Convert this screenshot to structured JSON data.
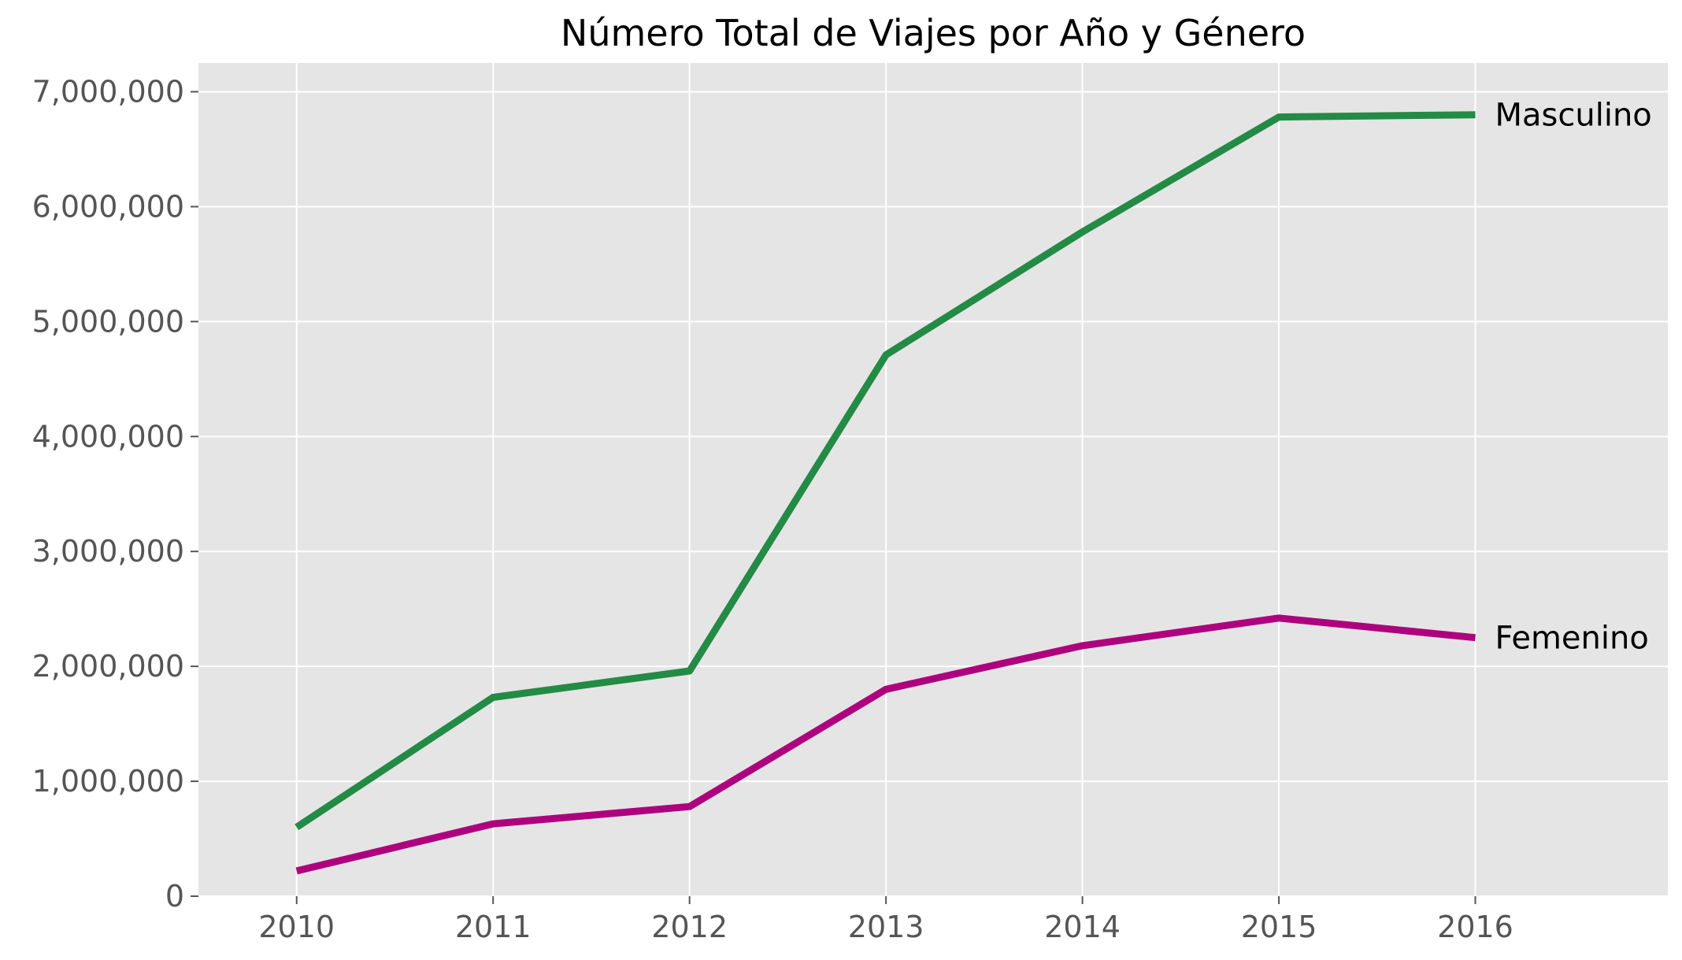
{
  "chart_data": {
    "type": "line",
    "title": "Número Total de Viajes por Año y Género",
    "xlabel": "",
    "ylabel": "",
    "x": [
      2010,
      2011,
      2012,
      2013,
      2014,
      2015,
      2016
    ],
    "x_tick_labels": [
      "2010",
      "2011",
      "2012",
      "2013",
      "2014",
      "2015",
      "2016"
    ],
    "xlim": [
      2009.5,
      2016.98
    ],
    "ylim": [
      0,
      7250000
    ],
    "y_ticks": [
      0,
      1000000,
      2000000,
      3000000,
      4000000,
      5000000,
      6000000,
      7000000
    ],
    "y_tick_labels": [
      "0",
      "1,000,000",
      "2,000,000",
      "3,000,000",
      "4,000,000",
      "5,000,000",
      "6,000,000",
      "7,000,000"
    ],
    "grid": true,
    "legend": "none",
    "series": [
      {
        "name": "Masculino",
        "color": "#238b45",
        "values": [
          600000,
          1730000,
          1960000,
          4710000,
          5780000,
          6780000,
          6800000
        ]
      },
      {
        "name": "Femenino",
        "color": "#ae017e",
        "values": [
          220000,
          630000,
          780000,
          1800000,
          2180000,
          2420000,
          2250000
        ]
      }
    ],
    "background_color": "#e5e5e5",
    "grid_color": "#ffffff"
  }
}
